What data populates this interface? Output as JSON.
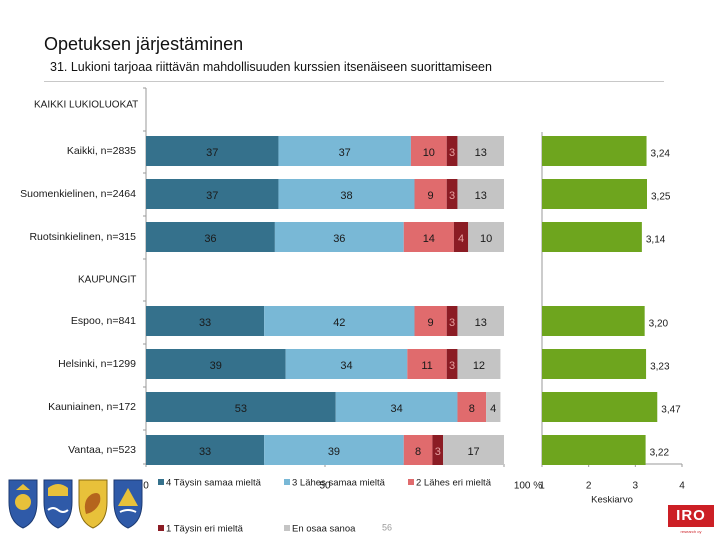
{
  "header": {
    "title": "Opetuksen järjestäminen",
    "subtitle": "31. Lukioni tarjoaa riittävän mahdollisuuden kurssien itsenäiseen suorittamiseen"
  },
  "logo": {
    "text": "IRO",
    "tagline": "research oy"
  },
  "page_number": "56",
  "colors": {
    "c4": "#35718c",
    "c3": "#79b8d6",
    "c2": "#e06b6d",
    "c1": "#8b1c24",
    "c0": "#c4c4c4",
    "avg": "#6ea51e"
  },
  "chart_data": [
    {
      "type": "bar",
      "orientation": "horizontal",
      "stacked": true,
      "xlim": [
        0,
        100
      ],
      "xticks": [
        "0",
        "50",
        "100 %"
      ],
      "groups": [
        {
          "label": "KAIKKI LUKIOLUOKAT",
          "rows": [
            0,
            1,
            2
          ]
        },
        {
          "label": "KAUPUNGIT",
          "rows": [
            3,
            4,
            5,
            6
          ]
        }
      ],
      "categories": [
        "Kaikki, n=2835",
        "Suomenkielinen, n=2464",
        "Ruotsinkielinen, n=315",
        "Espoo, n=841",
        "Helsinki, n=1299",
        "Kauniainen, n=172",
        "Vantaa, n=523"
      ],
      "series": [
        {
          "name": "4 Täysin samaa mieltä",
          "color_key": "c4",
          "values": [
            37,
            37,
            36,
            33,
            39,
            53,
            33
          ],
          "labels": [
            "37",
            "37",
            "36",
            "33",
            "39",
            "53",
            "33"
          ]
        },
        {
          "name": "3 Lähes samaa mieltä",
          "color_key": "c3",
          "values": [
            37,
            38,
            36,
            42,
            34,
            34,
            39
          ],
          "labels": [
            "37",
            "38",
            "36",
            "42",
            "34",
            "34",
            "39"
          ]
        },
        {
          "name": "2 Lähes eri mieltä",
          "color_key": "c2",
          "values": [
            10,
            9,
            14,
            9,
            11,
            8,
            8
          ],
          "labels": [
            "10",
            "9",
            "14",
            "9",
            "11",
            "8",
            "8"
          ]
        },
        {
          "name": "1 Täysin eri mieltä",
          "color_key": "c1",
          "values": [
            3,
            3,
            4,
            3,
            3,
            0,
            3
          ],
          "labels": [
            "3",
            "3",
            "4",
            "3",
            "3",
            "",
            "3"
          ]
        },
        {
          "name": "En osaa sanoa",
          "color_key": "c0",
          "values": [
            13,
            13,
            10,
            13,
            12,
            4,
            17
          ],
          "labels": [
            "13",
            "13",
            "10",
            "13",
            "12",
            "4",
            "17"
          ]
        }
      ]
    },
    {
      "type": "bar",
      "orientation": "horizontal",
      "xlim": [
        1,
        4
      ],
      "xticks": [
        "1",
        "2",
        "3",
        "4"
      ],
      "xlabel": "Keskiarvo",
      "categories": [
        "Kaikki, n=2835",
        "Suomenkielinen, n=2464",
        "Ruotsinkielinen, n=315",
        "Espoo, n=841",
        "Helsinki, n=1299",
        "Kauniainen, n=172",
        "Vantaa, n=523"
      ],
      "values": [
        3.24,
        3.25,
        3.14,
        3.2,
        3.23,
        3.47,
        3.22
      ],
      "labels": [
        "3,24",
        "3,25",
        "3,14",
        "3,20",
        "3,23",
        "3,47",
        "3,22"
      ],
      "color_key": "avg"
    }
  ]
}
